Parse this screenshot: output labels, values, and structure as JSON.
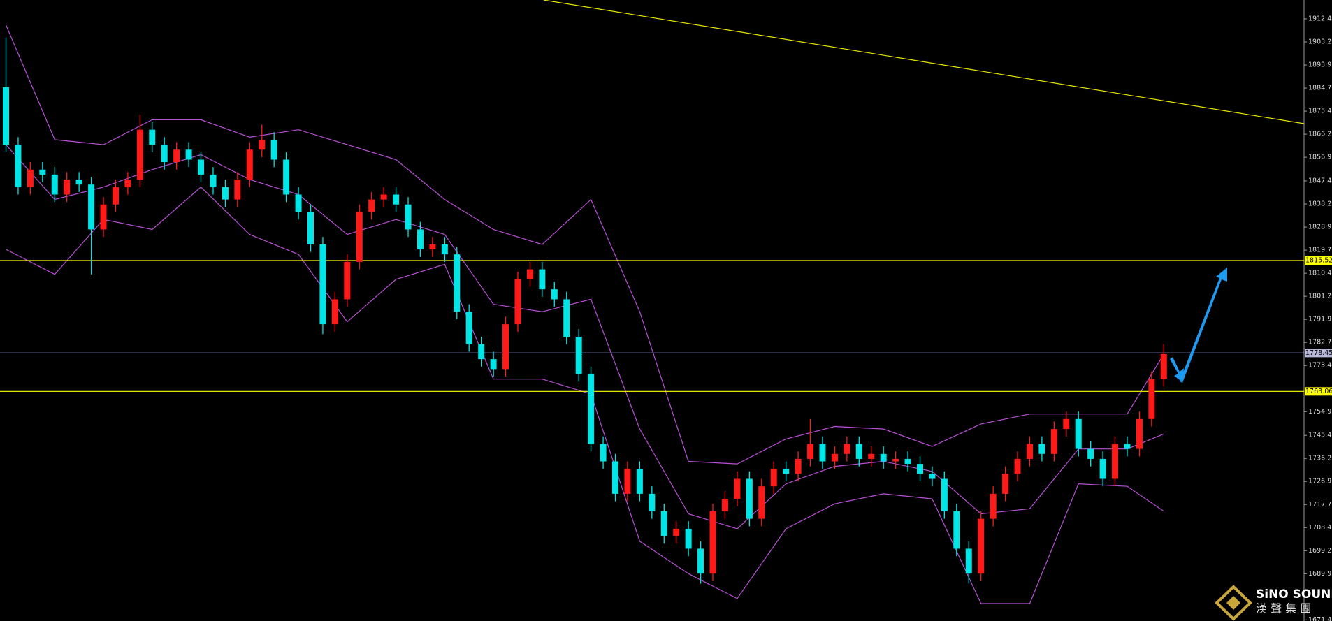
{
  "chart_data": {
    "type": "candlestick",
    "open": [
      1885,
      1862,
      1845,
      1852,
      1850,
      1842,
      1848,
      1846,
      1828,
      1838,
      1845,
      1848,
      1868,
      1862,
      1855,
      1860,
      1856,
      1850,
      1845,
      1840,
      1848,
      1860,
      1864,
      1856,
      1842,
      1835,
      1822,
      1790,
      1800,
      1815,
      1835,
      1840,
      1842,
      1838,
      1828,
      1820,
      1822,
      1818,
      1795,
      1782,
      1776,
      1772,
      1790,
      1808,
      1812,
      1804,
      1800,
      1785,
      1770,
      1742,
      1735,
      1722,
      1732,
      1722,
      1715,
      1705,
      1708,
      1700,
      1690,
      1715,
      1720,
      1728,
      1712,
      1725,
      1732,
      1730,
      1736,
      1742,
      1735,
      1738,
      1742,
      1736,
      1738,
      1735,
      1736,
      1734,
      1730,
      1728,
      1715,
      1700,
      1690,
      1712,
      1722,
      1730,
      1736,
      1742,
      1738,
      1748,
      1752,
      1740,
      1736,
      1728,
      1742,
      1740,
      1752,
      1768
    ],
    "high": [
      1905,
      1865,
      1855,
      1855,
      1853,
      1851,
      1851,
      1849,
      1841,
      1848,
      1851,
      1874,
      1871,
      1865,
      1863,
      1863,
      1859,
      1853,
      1848,
      1851,
      1863,
      1870,
      1867,
      1859,
      1845,
      1838,
      1825,
      1803,
      1818,
      1838,
      1843,
      1845,
      1845,
      1841,
      1831,
      1825,
      1825,
      1821,
      1798,
      1785,
      1779,
      1793,
      1811,
      1815,
      1815,
      1807,
      1803,
      1788,
      1773,
      1745,
      1738,
      1735,
      1735,
      1725,
      1718,
      1711,
      1711,
      1703,
      1718,
      1723,
      1731,
      1731,
      1728,
      1735,
      1735,
      1739,
      1752,
      1745,
      1741,
      1745,
      1745,
      1741,
      1741,
      1739,
      1739,
      1737,
      1733,
      1731,
      1718,
      1703,
      1715,
      1725,
      1733,
      1739,
      1745,
      1745,
      1751,
      1755,
      1755,
      1743,
      1739,
      1745,
      1745,
      1755,
      1771,
      1782
    ],
    "low": [
      1859,
      1842,
      1842,
      1847,
      1839,
      1839,
      1843,
      1810,
      1825,
      1835,
      1842,
      1845,
      1859,
      1852,
      1852,
      1853,
      1847,
      1842,
      1837,
      1837,
      1845,
      1857,
      1853,
      1839,
      1832,
      1819,
      1786,
      1787,
      1797,
      1812,
      1832,
      1837,
      1835,
      1825,
      1817,
      1817,
      1815,
      1792,
      1779,
      1773,
      1769,
      1769,
      1787,
      1805,
      1801,
      1797,
      1782,
      1767,
      1739,
      1732,
      1719,
      1719,
      1719,
      1712,
      1702,
      1702,
      1697,
      1686,
      1687,
      1712,
      1717,
      1709,
      1709,
      1722,
      1727,
      1727,
      1733,
      1732,
      1732,
      1735,
      1733,
      1733,
      1732,
      1732,
      1731,
      1727,
      1725,
      1712,
      1697,
      1686,
      1687,
      1709,
      1719,
      1727,
      1733,
      1735,
      1735,
      1745,
      1737,
      1733,
      1725,
      1725,
      1737,
      1737,
      1749,
      1765
    ],
    "close": [
      1862,
      1845,
      1852,
      1850,
      1842,
      1848,
      1846,
      1828,
      1838,
      1845,
      1848,
      1868,
      1862,
      1855,
      1860,
      1856,
      1850,
      1845,
      1840,
      1848,
      1860,
      1864,
      1856,
      1842,
      1835,
      1822,
      1790,
      1800,
      1815,
      1835,
      1840,
      1842,
      1838,
      1828,
      1820,
      1822,
      1818,
      1795,
      1782,
      1776,
      1772,
      1790,
      1808,
      1812,
      1804,
      1800,
      1785,
      1770,
      1742,
      1735,
      1722,
      1732,
      1722,
      1715,
      1705,
      1708,
      1700,
      1690,
      1715,
      1720,
      1728,
      1712,
      1725,
      1732,
      1730,
      1736,
      1742,
      1735,
      1738,
      1742,
      1736,
      1738,
      1735,
      1736,
      1734,
      1730,
      1728,
      1715,
      1700,
      1690,
      1712,
      1722,
      1730,
      1736,
      1742,
      1738,
      1748,
      1752,
      1740,
      1736,
      1728,
      1742,
      1740,
      1752,
      1768,
      1778
    ],
    "up_color": "#ff1a1a",
    "down_color": "#00e5e5",
    "bands": {
      "x": [
        0,
        4,
        8,
        12,
        16,
        20,
        24,
        28,
        32,
        36,
        40,
        44,
        48,
        52,
        56,
        60,
        64,
        68,
        72,
        76,
        80,
        84,
        88,
        92,
        95
      ],
      "color": "#b94fd6",
      "upper": [
        1910,
        1864,
        1862,
        1872,
        1872,
        1865,
        1868,
        1862,
        1856,
        1840,
        1828,
        1822,
        1840,
        1795,
        1735,
        1734,
        1744,
        1749,
        1748,
        1741,
        1750,
        1754,
        1754,
        1754,
        1778
      ],
      "middle": [
        1862,
        1840,
        1845,
        1852,
        1858,
        1848,
        1842,
        1826,
        1832,
        1826,
        1798,
        1795,
        1800,
        1748,
        1714,
        1708,
        1726,
        1733,
        1735,
        1731,
        1714,
        1716,
        1740,
        1740,
        1746
      ],
      "lower": [
        1820,
        1810,
        1832,
        1828,
        1845,
        1826,
        1818,
        1791,
        1808,
        1814,
        1768,
        1768,
        1762,
        1703,
        1690,
        1680,
        1708,
        1718,
        1722,
        1720,
        1678,
        1678,
        1726,
        1725,
        1715
      ]
    },
    "levels": {
      "values": [
        1815.52,
        1778.45,
        1763.06
      ],
      "colors": [
        "#ffff00",
        "#b8b8d8",
        "#ffff00"
      ]
    },
    "ylim": [
      1671,
      1920
    ],
    "yticks": [
      1912.45,
      {
        "value": 1903.2,
        "label": "1903.20"
      },
      1893.95,
      {
        "value": 1884.7,
        "label": "1884.70"
      },
      1875.45,
      {
        "value": 1866.2,
        "label": "1866.20"
      },
      1856.95,
      1847.45,
      {
        "value": 1838.2,
        "label": "1838.20"
      },
      1828.95,
      {
        "value": 1819.7,
        "label": "1819.70"
      },
      1810.45,
      {
        "value": 1801.2,
        "label": "1801.20"
      },
      1791.95,
      {
        "value": 1782.7,
        "label": "1782.70"
      },
      1773.45,
      1754.95,
      1745.45,
      {
        "value": 1736.2,
        "label": "1736.20"
      },
      1726.95,
      {
        "value": 1717.7,
        "label": "1717.70"
      },
      1708.45,
      {
        "value": 1699.2,
        "label": "1699.20"
      },
      1689.95,
      1671.45
    ]
  },
  "logo": {
    "brand": "SiNO SOUND",
    "chinese": "漢 聲 集 團"
  }
}
